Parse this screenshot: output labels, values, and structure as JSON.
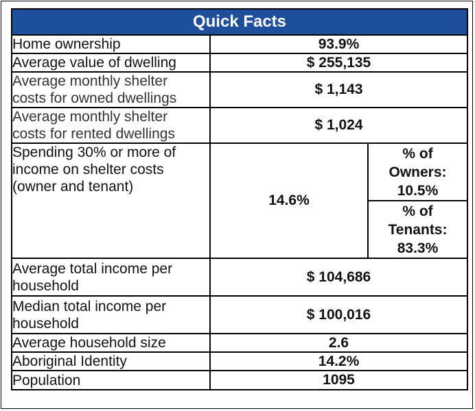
{
  "title": "Quick Facts",
  "rows": {
    "home_ownership": {
      "label": "Home ownership",
      "value": "93.9%"
    },
    "avg_value_dwelling": {
      "label": "Average value of dwelling",
      "value": "$ 255,135"
    },
    "owned_shelter": {
      "label_line1": "Average monthly shelter",
      "label_line2": "costs for owned dwellings",
      "value": "$ 1,143"
    },
    "rented_shelter": {
      "label_line1": "Average monthly shelter",
      "label_line2": "costs for rented dwellings",
      "value": "$ 1,024"
    },
    "spending": {
      "label_line1": "Spending 30% or more of",
      "label_line2": "income on shelter costs",
      "label_line3": "(owner and tenant)",
      "value": "14.6%",
      "owners_line1": "% of",
      "owners_line2": "Owners:",
      "owners_value": "10.5%",
      "tenants_line1": "% of",
      "tenants_line2": "Tenants:",
      "tenants_value": "83.3%"
    },
    "avg_income": {
      "label_line1": "Average total income per",
      "label_line2": "household",
      "value": "$ 104,686"
    },
    "median_income": {
      "label_line1": "Median total income per",
      "label_line2": "household",
      "value": "$ 100,016"
    },
    "household_size": {
      "label": "Average household size",
      "value": "2.6"
    },
    "aboriginal": {
      "label": "Aboriginal Identity",
      "value": "14.2%"
    },
    "population": {
      "label": "Population",
      "value": "1095"
    }
  }
}
